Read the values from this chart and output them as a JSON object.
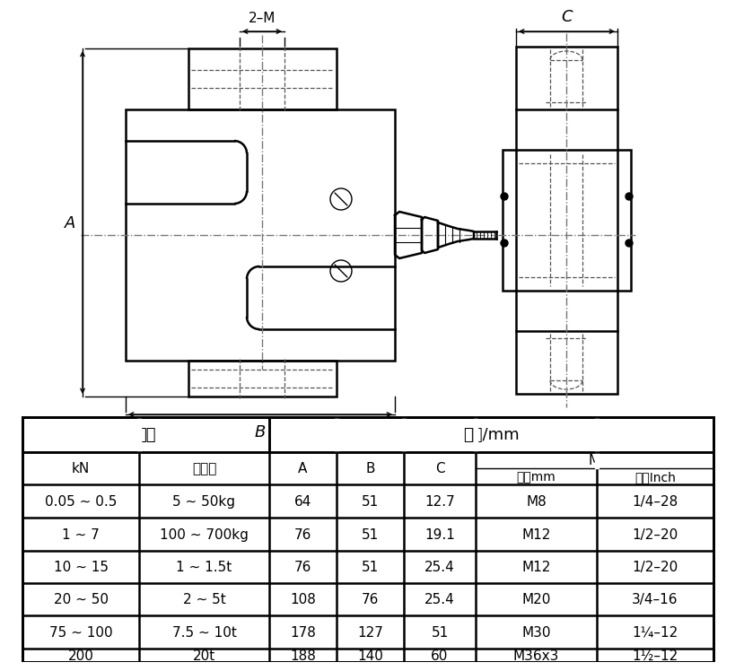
{
  "bg_color": "#ffffff",
  "line_color": "#000000",
  "table_header1": "量程",
  "table_header2": "尺寸/mm",
  "col_headers": [
    "kN",
    "相当于",
    "A",
    "B",
    "C"
  ],
  "m_header": "M",
  "m_sub1": "公制mm",
  "m_sub2": "英制Inch",
  "rows": [
    [
      "0.05 ~ 0.5",
      "5 ~ 50kg",
      "64",
      "51",
      "12.7",
      "M8",
      "1/4–28"
    ],
    [
      "1 ~ 7",
      "100 ~ 700kg",
      "76",
      "51",
      "19.1",
      "M12",
      "1/2–20"
    ],
    [
      "10 ~ 15",
      "1 ~ 1.5t",
      "76",
      "51",
      "25.4",
      "M12",
      "1/2–20"
    ],
    [
      "20 ~ 50",
      "2 ~ 5t",
      "108",
      "76",
      "25.4",
      "M20",
      "3/4–16"
    ],
    [
      "75 ~ 100",
      "7.5 ~ 10t",
      "178",
      "127",
      "51",
      "M30",
      "1¼–12"
    ],
    [
      "200",
      "20t",
      "188",
      "140",
      "60",
      "M36x3",
      "1½–12"
    ]
  ],
  "dim_label_2M": "2–M",
  "dim_label_A": "A",
  "dim_label_B": "B",
  "dim_label_C": "C",
  "font_name": "SimHei"
}
